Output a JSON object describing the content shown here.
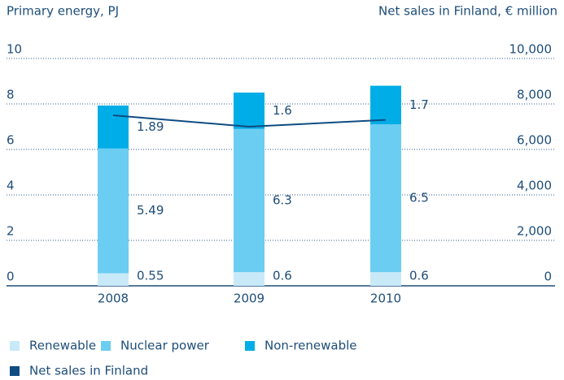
{
  "chart_data": {
    "type": "bar",
    "stacked": true,
    "y_axis_label": "Primary energy, PJ",
    "y2_axis_label": "Net sales in Finland, € million",
    "categories": [
      "2008",
      "2009",
      "2010"
    ],
    "series": [
      {
        "name": "Renewable",
        "color": "#c8eaf8",
        "values": [
          0.55,
          0.6,
          0.6
        ]
      },
      {
        "name": "Nuclear power",
        "color": "#6ccdf2",
        "values": [
          5.49,
          6.3,
          6.5
        ]
      },
      {
        "name": "Non-renewable",
        "color": "#00ade6",
        "values": [
          1.89,
          1.6,
          1.7
        ]
      },
      {
        "name": "Net sales in Finland",
        "color": "#0f4c81",
        "type": "line",
        "axis": "y2",
        "values": [
          7500,
          7000,
          7300
        ]
      }
    ],
    "ylim": [
      0,
      10
    ],
    "yticks": [
      0,
      2,
      4,
      6,
      8,
      10
    ],
    "y2lim": [
      0,
      10000
    ],
    "y2ticks": [
      0,
      {
        "value": 2000,
        "label": "2,000"
      },
      {
        "value": 4000,
        "label": "4,000"
      },
      {
        "value": 6000,
        "label": "6,000"
      },
      {
        "value": 8000,
        "label": "8,000"
      },
      {
        "value": 10000,
        "label": "10,000"
      }
    ],
    "grid": true,
    "legend": "bottom"
  }
}
